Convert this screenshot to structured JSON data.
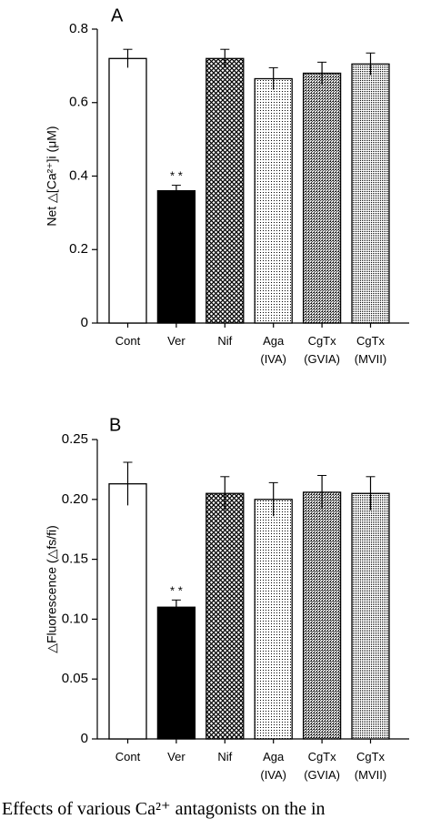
{
  "chart_data": [
    {
      "type": "bar",
      "panel_label": "A",
      "ylabel": "Net △[Ca²⁺]i  (μM)",
      "ylim": [
        0,
        0.8
      ],
      "yticks": [
        "0",
        "0.2",
        "0.4",
        "0.6",
        "0.8"
      ],
      "categories": [
        "Cont",
        "Ver",
        "Nif",
        "Aga",
        "CgTx",
        "CgTx"
      ],
      "subcategories": [
        "",
        "",
        "",
        "(IVA)",
        "(GVIA)",
        "(MVII)"
      ],
      "values": [
        0.72,
        0.36,
        0.72,
        0.665,
        0.68,
        0.705
      ],
      "errors": [
        0.025,
        0.015,
        0.025,
        0.03,
        0.03,
        0.03
      ],
      "significance": [
        "",
        "* *",
        "",
        "",
        "",
        ""
      ],
      "fills": [
        "white",
        "black",
        "crosshatch",
        "dots",
        "fine-hatch",
        "dense-dots"
      ]
    },
    {
      "type": "bar",
      "panel_label": "B",
      "ylabel": "△Fluorescence  (△fs/fi)",
      "ylim": [
        0,
        0.25
      ],
      "yticks": [
        "0",
        "0.05",
        "0.10",
        "0.15",
        "0.20",
        "0.25"
      ],
      "categories": [
        "Cont",
        "Ver",
        "Nif",
        "Aga",
        "CgTx",
        "CgTx"
      ],
      "subcategories": [
        "",
        "",
        "",
        "(IVA)",
        "(GVIA)",
        "(MVII)"
      ],
      "values": [
        0.213,
        0.11,
        0.205,
        0.2,
        0.206,
        0.205
      ],
      "errors": [
        0.018,
        0.006,
        0.014,
        0.014,
        0.014,
        0.014
      ],
      "significance": [
        "",
        "* *",
        "",
        "",
        "",
        ""
      ],
      "fills": [
        "white",
        "black",
        "crosshatch",
        "dots",
        "fine-hatch",
        "dense-dots"
      ]
    }
  ],
  "caption": "Effects of various Ca²⁺ antagonists on the in"
}
